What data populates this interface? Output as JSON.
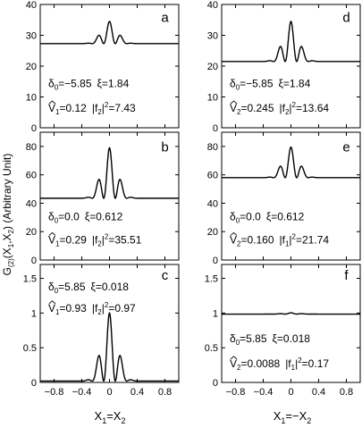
{
  "figure": {
    "ylabel_main": "G",
    "ylabel_sub": "(2)",
    "ylabel_rest": "(X",
    "ylabel_s1": "1",
    "ylabel_mid": ",X",
    "ylabel_s2": "2",
    "ylabel_end": ") (Arbitrary Unit)",
    "xlabel_left": {
      "v1": "X",
      "s1": "1",
      "eq": "=X",
      "s2": "2"
    },
    "xlabel_right": {
      "v1": "X",
      "s1": "1",
      "eq": "=−X",
      "s2": "2"
    }
  },
  "chart_data": [
    {
      "type": "line",
      "panel": "a",
      "x_ticks": [
        "-0.8",
        "-0.4",
        "0",
        "0.4",
        "0.8"
      ],
      "show_x_ticklabels": false,
      "ylim": [
        0,
        40
      ],
      "y_ticks": [
        0,
        10,
        20,
        30,
        40
      ],
      "y_ticklabels": [
        "0",
        "10",
        "20",
        "30",
        "40"
      ],
      "xlim": [
        -1,
        1
      ],
      "curve": {
        "baseline": 27.3,
        "amplitude": 7.2,
        "frequency": 6.0,
        "envelope_width": 0.16
      },
      "annotation": {
        "delta_label": "δ",
        "delta_sub": "0",
        "delta_value": "=−5.85",
        "xi_label": "ξ=1.84",
        "v_label": "V",
        "v_sub": "1",
        "v_value": "=0.12",
        "f_label": "|f",
        "f_sub": "2",
        "f_sup": "2",
        "f_value": "=7.43"
      }
    },
    {
      "type": "line",
      "panel": "b",
      "x_ticks": [
        "-0.8",
        "-0.4",
        "0",
        "0.4",
        "0.8"
      ],
      "show_x_ticklabels": false,
      "ylim": [
        0,
        90
      ],
      "y_ticks": [
        0,
        20,
        40,
        60,
        80
      ],
      "y_ticklabels": [
        "0",
        "20",
        "40",
        "60",
        "80"
      ],
      "xlim": [
        -1,
        1
      ],
      "curve": {
        "baseline": 43.5,
        "amplitude": 35.5,
        "frequency": 6.0,
        "envelope_width": 0.16
      },
      "annotation": {
        "delta_label": "δ",
        "delta_sub": "0",
        "delta_value": "=0.0",
        "xi_label": "ξ=0.612",
        "v_label": "V",
        "v_sub": "1",
        "v_value": "=0.29",
        "f_label": "|f",
        "f_sub": "2",
        "f_sup": "2",
        "f_value": "=35.51"
      }
    },
    {
      "type": "line",
      "panel": "c",
      "x_ticks": [
        "-0.8",
        "-0.4",
        "0",
        "0.4",
        "0.8"
      ],
      "x_ticklabels": [
        "−0.8",
        "−0.4",
        "0",
        "0.4",
        "0.8"
      ],
      "show_x_ticklabels": true,
      "ylim": [
        0,
        1.7
      ],
      "y_ticks": [
        0,
        0.5,
        1,
        1.5
      ],
      "y_ticklabels": [
        "0",
        "0.5",
        "1",
        "1.5"
      ],
      "xlim": [
        -1,
        1
      ],
      "curve": {
        "baseline": 0.02,
        "amplitude": 0.98,
        "frequency": 6.0,
        "envelope_width": 0.16
      },
      "annotation": {
        "delta_label": "δ",
        "delta_sub": "0",
        "delta_value": "=5.85",
        "xi_label": "ξ=0.018",
        "v_label": "V",
        "v_sub": "1",
        "v_value": "=0.93",
        "f_label": "|f",
        "f_sub": "2",
        "f_sup": "2",
        "f_value": "=0.97"
      }
    },
    {
      "type": "line",
      "panel": "d",
      "x_ticks": [
        "-0.8",
        "-0.4",
        "0",
        "0.4",
        "0.8"
      ],
      "show_x_ticklabels": false,
      "ylim": [
        0,
        40
      ],
      "y_ticks": [
        0,
        10,
        20,
        30,
        40
      ],
      "y_ticklabels": [
        "0",
        "10",
        "20",
        "30",
        "40"
      ],
      "xlim": [
        -1,
        1
      ],
      "curve": {
        "baseline": 21.5,
        "amplitude": 13.0,
        "frequency": 6.0,
        "envelope_width": 0.16
      },
      "annotation": {
        "delta_label": "δ",
        "delta_sub": "0",
        "delta_value": "=−5.85",
        "xi_label": "ξ=1.84",
        "v_label": "V",
        "v_sub": "2",
        "v_value": "=0.245",
        "f_label": "|f",
        "f_sub": "2",
        "f_sup": "2",
        "f_value": "=13.64"
      }
    },
    {
      "type": "line",
      "panel": "e",
      "x_ticks": [
        "-0.8",
        "-0.4",
        "0",
        "0.4",
        "0.8"
      ],
      "show_x_ticklabels": false,
      "ylim": [
        0,
        90
      ],
      "y_ticks": [
        0,
        20,
        40,
        60,
        80
      ],
      "y_ticklabels": [
        "0",
        "20",
        "40",
        "60",
        "80"
      ],
      "xlim": [
        -1,
        1
      ],
      "curve": {
        "baseline": 58.0,
        "amplitude": 21.5,
        "frequency": 6.0,
        "envelope_width": 0.16
      },
      "annotation": {
        "delta_label": "δ",
        "delta_sub": "0",
        "delta_value": "=0.0",
        "xi_label": "ξ=0.612",
        "v_label": "V",
        "v_sub": "2",
        "v_value": "=0.160",
        "f_label": "|f",
        "f_sub": "1",
        "f_sup": "2",
        "f_value": "=21.74"
      }
    },
    {
      "type": "line",
      "panel": "f",
      "x_ticks": [
        "-0.8",
        "-0.4",
        "0",
        "0.4",
        "0.8"
      ],
      "x_ticklabels": [
        "−0.8",
        "−0.4",
        "0",
        "0.4",
        "0.8"
      ],
      "show_x_ticklabels": true,
      "ylim": [
        0,
        1.7
      ],
      "y_ticks": [
        0,
        0.5,
        1,
        1.5
      ],
      "y_ticklabels": [
        "0",
        "0.5",
        "1",
        "1.5"
      ],
      "xlim": [
        -1,
        1
      ],
      "curve": {
        "baseline": 0.985,
        "amplitude": 0.018,
        "frequency": 6.0,
        "envelope_width": 0.16
      },
      "annotation": {
        "delta_label": "δ",
        "delta_sub": "0",
        "delta_value": "=5.85",
        "xi_label": "ξ=0.018",
        "v_label": "V",
        "v_sub": "2",
        "v_value": "=0.0088",
        "f_label": "|f",
        "f_sub": "1",
        "f_sup": "2",
        "f_value": "=0.17"
      }
    }
  ]
}
